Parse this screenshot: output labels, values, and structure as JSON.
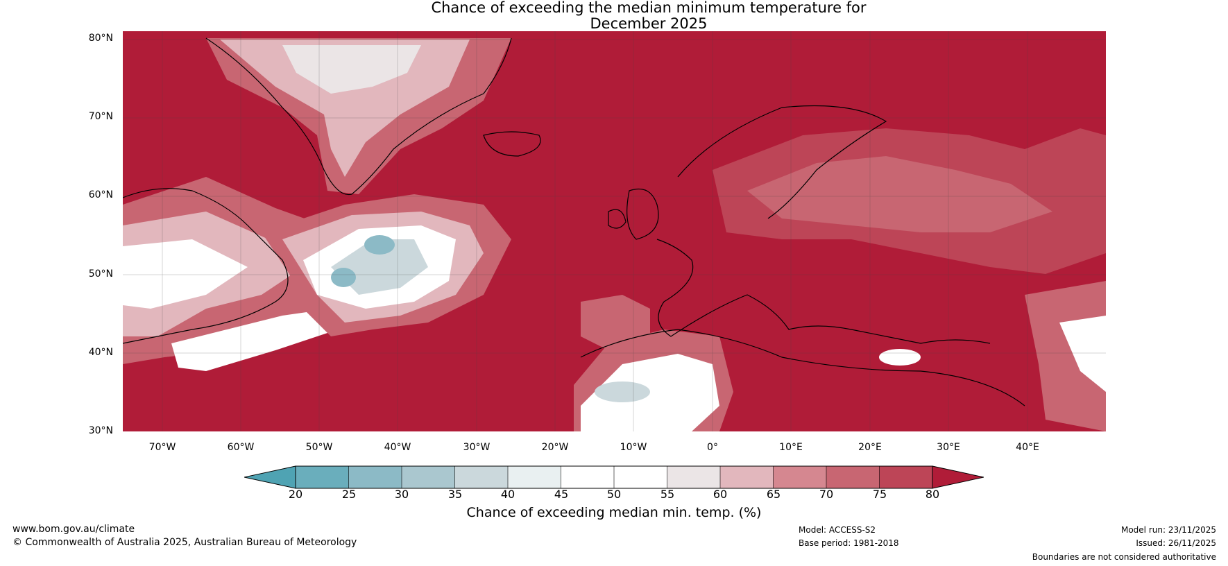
{
  "title": {
    "line1": "Chance of exceeding the median minimum temperature for",
    "line2": "December 2025"
  },
  "map": {
    "region": "North Atlantic and Europe",
    "background_color": "#b01c38",
    "lat_labels": [
      "80°N",
      "70°N",
      "60°N",
      "50°N",
      "40°N",
      "30°N"
    ],
    "lon_labels": [
      "70°W",
      "60°W",
      "50°W",
      "40°W",
      "30°W",
      "20°W",
      "10°W",
      "0°",
      "10°E",
      "20°E",
      "30°E",
      "40°E"
    ]
  },
  "legend": {
    "ticks": [
      "20",
      "25",
      "30",
      "35",
      "40",
      "45",
      "50",
      "55",
      "60",
      "65",
      "70",
      "75",
      "80"
    ],
    "colors": [
      "#4fa3b3",
      "#6aaebc",
      "#8cbac6",
      "#aac7cf",
      "#cbd8dc",
      "#e9f0f1",
      "#ffffff",
      "#ffffff",
      "#ebe5e6",
      "#e2b7bd",
      "#d58790",
      "#c86672",
      "#bd4557",
      "#b01c38"
    ],
    "label": "Chance of exceeding median min. temp. (%)"
  },
  "footer": {
    "url": "www.bom.gov.au/climate",
    "copyright": "© Commonwealth of Australia 2025, Australian Bureau of Meteorology",
    "model": "Model: ACCESS-S2",
    "base_period": "Base period: 1981-2018",
    "model_run": "Model run: 23/11/2025",
    "issued": "Issued: 26/11/2025",
    "disclaimer": "Boundaries are not considered authoritative"
  }
}
